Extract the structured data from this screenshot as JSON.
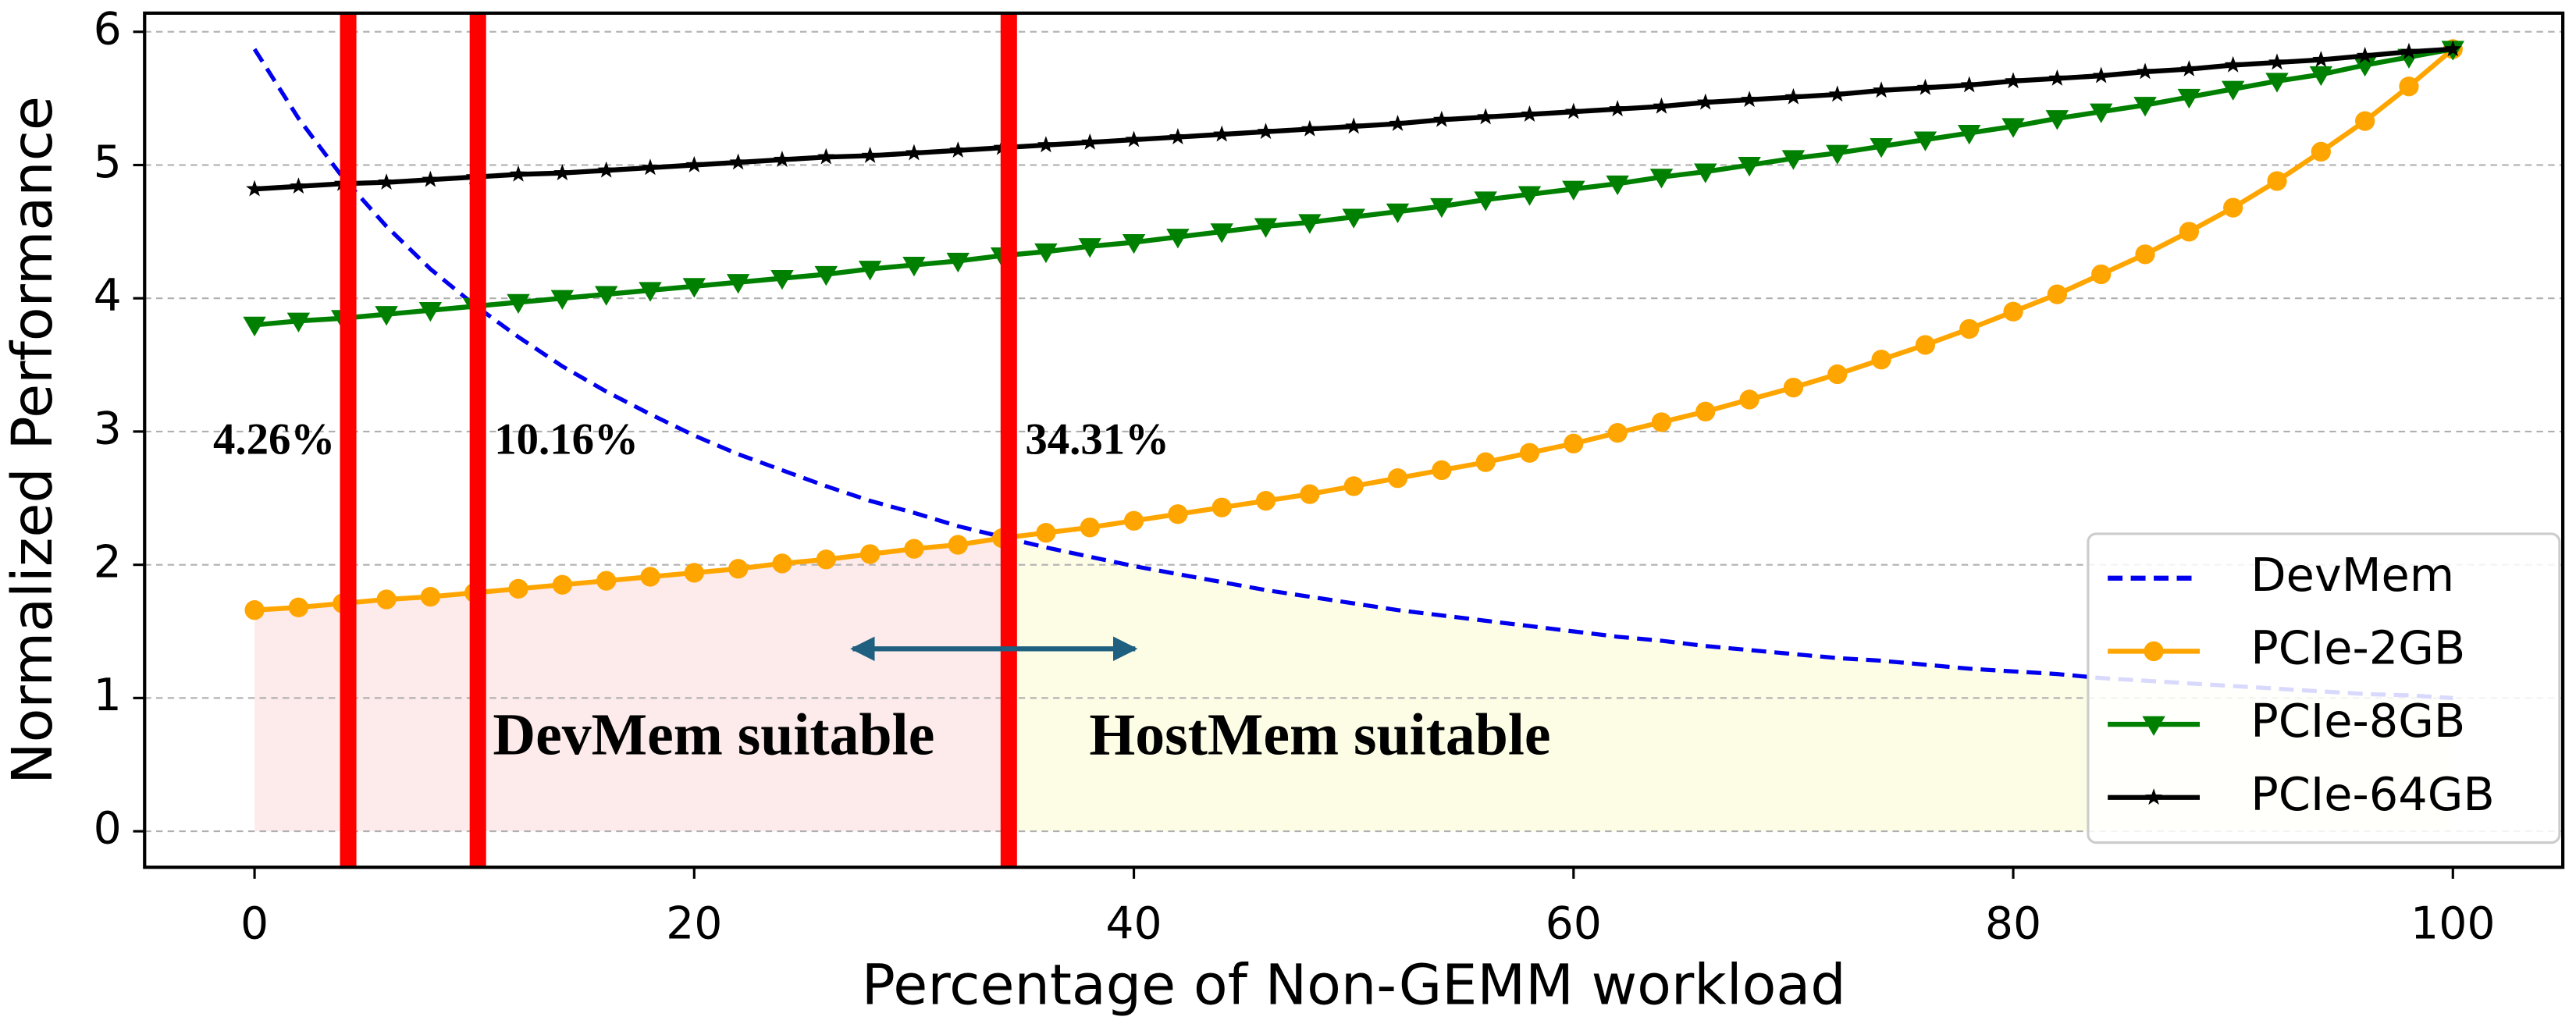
{
  "chart_data": {
    "type": "line",
    "xlabel": "Percentage of Non-GEMM workload",
    "ylabel": "Normalized Performance",
    "x": [
      0,
      2,
      4,
      6,
      8,
      10,
      12,
      14,
      16,
      18,
      20,
      22,
      24,
      26,
      28,
      30,
      32,
      34,
      36,
      38,
      40,
      42,
      44,
      46,
      48,
      50,
      52,
      54,
      56,
      58,
      60,
      62,
      64,
      66,
      68,
      70,
      72,
      74,
      76,
      78,
      80,
      82,
      84,
      86,
      88,
      90,
      92,
      94,
      96,
      98,
      100
    ],
    "series": [
      {
        "name": "DevMem",
        "color": "#0000ee",
        "style": "dashed",
        "marker": "none",
        "values": [
          5.87,
          5.35,
          4.91,
          4.54,
          4.22,
          3.95,
          3.71,
          3.49,
          3.3,
          3.13,
          2.97,
          2.83,
          2.71,
          2.59,
          2.48,
          2.39,
          2.29,
          2.21,
          2.13,
          2.06,
          1.99,
          1.93,
          1.87,
          1.81,
          1.76,
          1.71,
          1.66,
          1.62,
          1.58,
          1.54,
          1.5,
          1.46,
          1.43,
          1.39,
          1.36,
          1.33,
          1.3,
          1.28,
          1.25,
          1.22,
          1.2,
          1.18,
          1.15,
          1.13,
          1.11,
          1.09,
          1.07,
          1.05,
          1.03,
          1.02,
          1.0
        ]
      },
      {
        "name": "PCIe-2GB",
        "color": "#ffa500",
        "style": "solid",
        "marker": "circle",
        "values": [
          1.66,
          1.68,
          1.71,
          1.74,
          1.76,
          1.79,
          1.82,
          1.85,
          1.88,
          1.91,
          1.94,
          1.97,
          2.01,
          2.04,
          2.08,
          2.12,
          2.15,
          2.2,
          2.24,
          2.28,
          2.33,
          2.38,
          2.43,
          2.48,
          2.53,
          2.59,
          2.65,
          2.71,
          2.77,
          2.84,
          2.91,
          2.99,
          3.07,
          3.15,
          3.24,
          3.33,
          3.43,
          3.54,
          3.65,
          3.77,
          3.9,
          4.03,
          4.18,
          4.33,
          4.5,
          4.68,
          4.88,
          5.1,
          5.33,
          5.59,
          5.87
        ]
      },
      {
        "name": "PCIe-8GB",
        "color": "#008000",
        "style": "solid",
        "marker": "triangle-down",
        "values": [
          3.8,
          3.83,
          3.85,
          3.88,
          3.91,
          3.94,
          3.97,
          4.0,
          4.03,
          4.06,
          4.09,
          4.12,
          4.15,
          4.18,
          4.22,
          4.25,
          4.28,
          4.32,
          4.35,
          4.39,
          4.42,
          4.46,
          4.5,
          4.54,
          4.57,
          4.61,
          4.65,
          4.69,
          4.74,
          4.78,
          4.82,
          4.86,
          4.91,
          4.95,
          5.0,
          5.05,
          5.09,
          5.14,
          5.19,
          5.24,
          5.29,
          5.35,
          5.4,
          5.45,
          5.51,
          5.57,
          5.63,
          5.68,
          5.75,
          5.81,
          5.87
        ]
      },
      {
        "name": "PCIe-64GB",
        "color": "#000000",
        "style": "solid",
        "marker": "star",
        "values": [
          4.82,
          4.84,
          4.86,
          4.87,
          4.89,
          4.91,
          4.93,
          4.94,
          4.96,
          4.98,
          5.0,
          5.02,
          5.04,
          5.06,
          5.07,
          5.09,
          5.11,
          5.13,
          5.15,
          5.17,
          5.19,
          5.21,
          5.23,
          5.25,
          5.27,
          5.29,
          5.31,
          5.34,
          5.36,
          5.38,
          5.4,
          5.42,
          5.44,
          5.47,
          5.49,
          5.51,
          5.53,
          5.56,
          5.58,
          5.6,
          5.63,
          5.65,
          5.67,
          5.7,
          5.72,
          5.75,
          5.77,
          5.79,
          5.82,
          5.85,
          5.87
        ]
      }
    ],
    "vlines": [
      {
        "value": 4.26,
        "label": "4.26%",
        "color": "#ff0000"
      },
      {
        "value": 10.16,
        "label": "10.16%",
        "color": "#ff0000"
      },
      {
        "value": 34.31,
        "label": "34.31%",
        "color": "#ff0000"
      }
    ],
    "regions": [
      {
        "from": 0,
        "to": 34.31,
        "series_index": 1,
        "color": "#fdeaea"
      },
      {
        "from": 34.31,
        "to": 100,
        "series_index": 0,
        "color": "#fdfde6"
      }
    ],
    "annotations": [
      "DevMem suitable",
      "HostMem suitable"
    ],
    "xlim": [
      -5,
      105
    ],
    "xticks": [
      0,
      20,
      40,
      60,
      80,
      100
    ],
    "ylim": [
      -0.27,
      6.14
    ],
    "yticks": [
      0,
      1,
      2,
      3,
      4,
      5,
      6
    ],
    "grid": true,
    "legend": "lower right"
  }
}
